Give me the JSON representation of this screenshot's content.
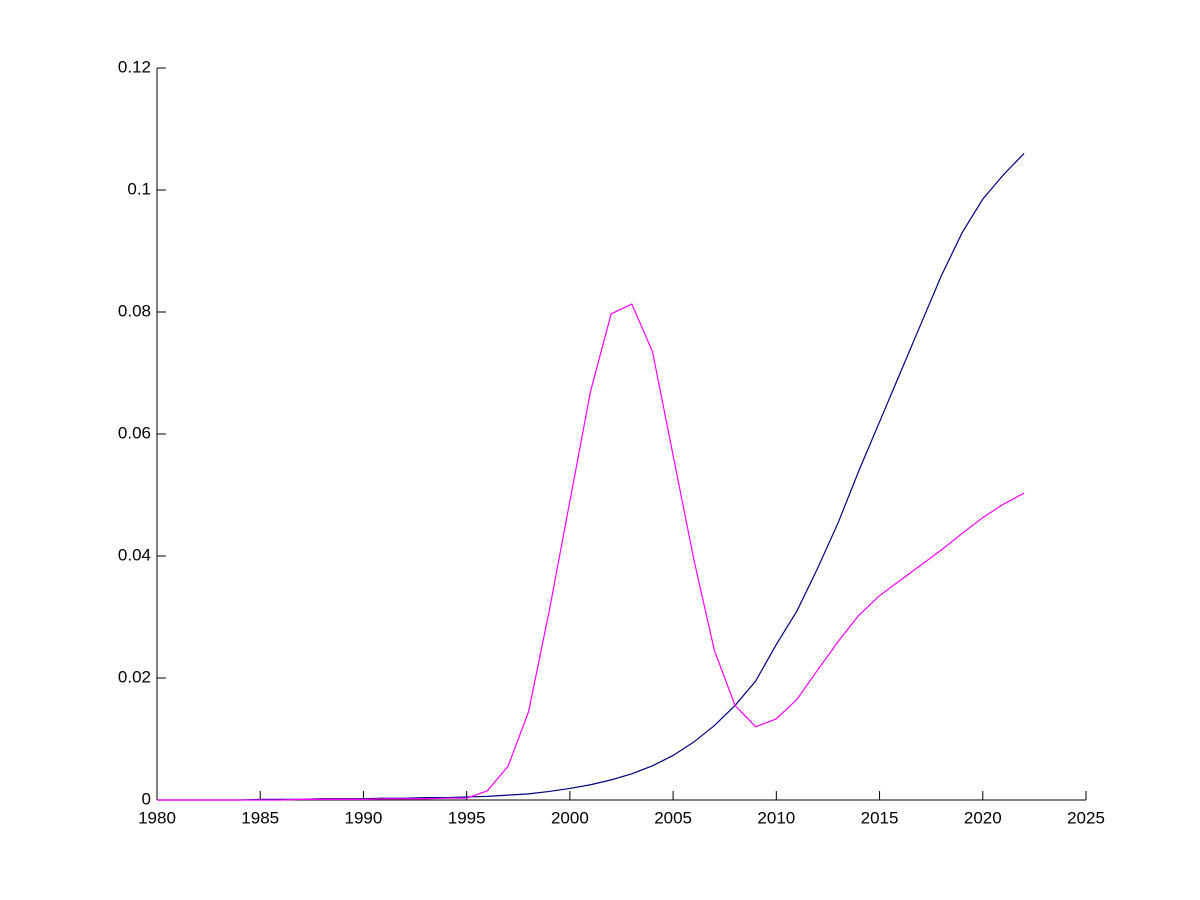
{
  "chart_data": {
    "type": "line",
    "x": [
      1980,
      1981,
      1982,
      1983,
      1984,
      1985,
      1986,
      1987,
      1988,
      1989,
      1990,
      1991,
      1992,
      1993,
      1994,
      1995,
      1996,
      1997,
      1998,
      1999,
      2000,
      2001,
      2002,
      2003,
      2004,
      2005,
      2006,
      2007,
      2008,
      2009,
      2010,
      2011,
      2012,
      2013,
      2014,
      2015,
      2016,
      2017,
      2018,
      2019,
      2020,
      2021,
      2022
    ],
    "series": [
      {
        "color": "#000080",
        "values": [
          0,
          0,
          0,
          0,
          0,
          0.0001,
          0.0001,
          0.0001,
          0.0002,
          0.0002,
          0.0002,
          0.0003,
          0.0003,
          0.0004,
          0.0004,
          0.0005,
          0.0006,
          0.0008,
          0.001,
          0.0014,
          0.0019,
          0.0025,
          0.0033,
          0.0043,
          0.0056,
          0.0073,
          0.0095,
          0.0122,
          0.0155,
          0.0195,
          0.0255,
          0.031,
          0.038,
          0.0455,
          0.054,
          0.062,
          0.07,
          0.078,
          0.086,
          0.093,
          0.0985,
          0.1025,
          0.106
        ]
      },
      {
        "color": "#ff00ff",
        "values": [
          0,
          0,
          0,
          0,
          0,
          0,
          0,
          0.0001,
          0.0001,
          0.0001,
          0.0001,
          0.0002,
          0.0002,
          0.0002,
          0.0003,
          0.0003,
          0.0015,
          0.0055,
          0.0145,
          0.031,
          0.049,
          0.067,
          0.0797,
          0.0813,
          0.0735,
          0.0565,
          0.0395,
          0.0245,
          0.0155,
          0.012,
          0.0133,
          0.0165,
          0.0213,
          0.026,
          0.0303,
          0.0335,
          0.036,
          0.0385,
          0.041,
          0.0437,
          0.0463,
          0.0485,
          0.0503
        ]
      }
    ],
    "xlim": [
      1980,
      2025
    ],
    "xticks": [
      1980,
      1985,
      1990,
      1995,
      2000,
      2005,
      2010,
      2015,
      2020,
      2025
    ],
    "ylim": [
      0,
      0.12
    ],
    "yticks": [
      0,
      0.02,
      0.04,
      0.06,
      0.08,
      0.1,
      0.12
    ]
  }
}
